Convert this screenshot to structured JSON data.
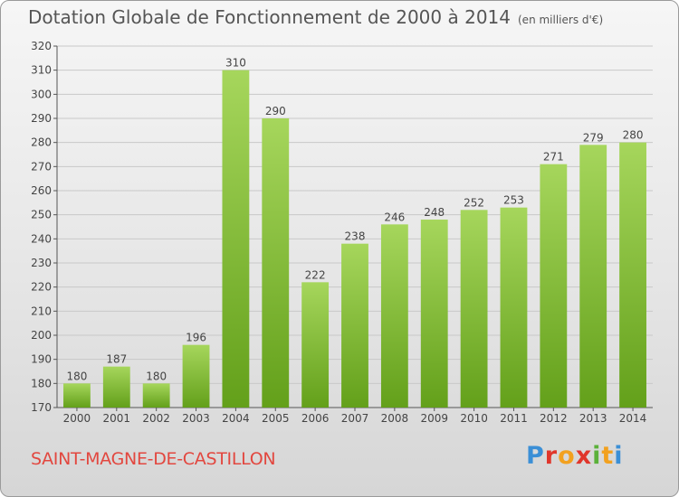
{
  "title": "Dotation Globale de Fonctionnement de 2000 à 2014",
  "unit": "(en milliers d'€)",
  "commune": "SAINT-MAGNE-DE-CASTILLON",
  "logo": "Proxiti",
  "colors": {
    "bar_light": "#a6d65c",
    "bar_dark": "#63a01a",
    "commune_text": "#e2473f",
    "gridline": "#c8c8c8"
  },
  "chart_data": {
    "type": "bar",
    "categories": [
      "2000",
      "2001",
      "2002",
      "2003",
      "2004",
      "2005",
      "2006",
      "2007",
      "2008",
      "2009",
      "2010",
      "2011",
      "2012",
      "2013",
      "2014"
    ],
    "values": [
      180,
      187,
      180,
      196,
      310,
      290,
      222,
      238,
      246,
      248,
      252,
      253,
      271,
      279,
      280
    ],
    "title": "Dotation Globale de Fonctionnement de 2000 à 2014",
    "xlabel": "",
    "ylabel": "",
    "ylim": [
      170,
      320
    ],
    "yticks": [
      170,
      180,
      190,
      200,
      210,
      220,
      230,
      240,
      250,
      260,
      270,
      280,
      290,
      300,
      310,
      320
    ],
    "grid": true
  }
}
